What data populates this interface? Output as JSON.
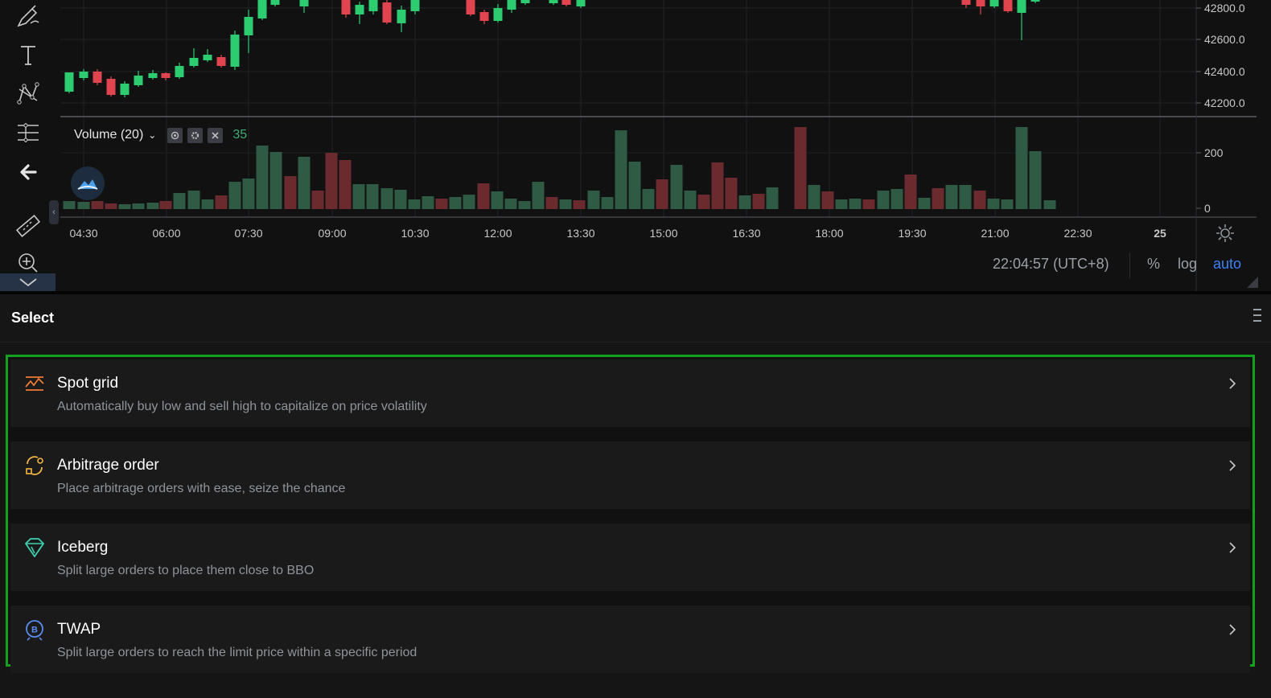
{
  "chart": {
    "price_axis_labels": [
      "42800.0",
      "42600.0",
      "42400.0",
      "42200.0"
    ],
    "volume_axis_labels": [
      "200",
      "0"
    ],
    "time_labels": [
      "04:30",
      "06:00",
      "07:30",
      "09:00",
      "10:30",
      "12:00",
      "13:30",
      "15:00",
      "16:30",
      "18:00",
      "19:30",
      "21:00",
      "22:30",
      "25"
    ],
    "volume_indicator": {
      "label": "Volume (20)",
      "value": "35"
    },
    "time_readout": "22:04:57 (UTC+8)",
    "axis_options": {
      "percent": "%",
      "log": "log",
      "auto": "auto"
    },
    "colors": {
      "up": "#2ecc71",
      "down": "#e0444f",
      "volume_up": "#2f5a44",
      "volume_down": "#6b2a2e",
      "active": "#3b82f6",
      "frame": "#14a01e"
    }
  },
  "toolbar": {
    "icons": [
      "brush-icon",
      "text-icon",
      "pattern-icon",
      "measure-lines-icon",
      "back-arrow-icon",
      "ruler-icon",
      "zoom-in-icon",
      "chevron-down-icon"
    ]
  },
  "panel": {
    "title": "Select",
    "strategies": [
      {
        "title": "Spot grid",
        "desc": "Automatically buy low and sell high to capitalize on price volatility",
        "icon": "grid-chart-icon"
      },
      {
        "title": "Arbitrage order",
        "desc": "Place arbitrage orders with ease, seize the chance",
        "icon": "arbitrage-icon"
      },
      {
        "title": "Iceberg",
        "desc": "Split large orders to place them close to BBO",
        "icon": "iceberg-icon"
      },
      {
        "title": "TWAP",
        "desc": "Split large orders to reach the limit price within a specific period",
        "icon": "twap-icon"
      }
    ]
  }
}
